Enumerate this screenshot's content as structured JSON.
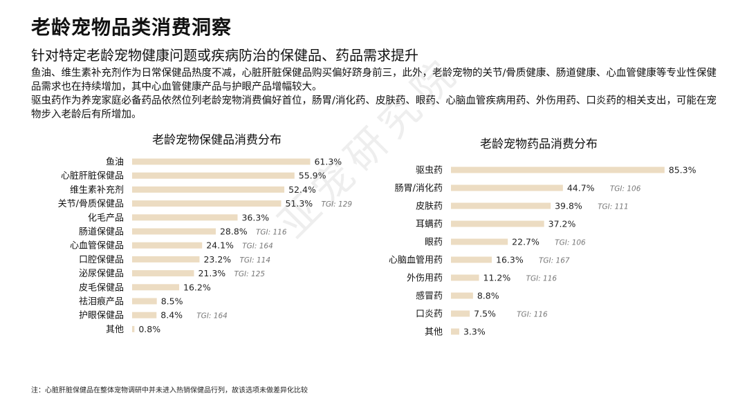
{
  "title": "老龄宠物品类消费洞察",
  "subtitle": "针对特定老龄宠物健康问题或疾病防治的保健品、药品需求提升",
  "paragraph1": "鱼油、维生素补充剂作为日常保健品热度不减，心脏肝脏保健品购买偏好跻身前三，此外，老龄宠物的关节/骨质健康、肠道健康、心血管健康等专业性保健品需求也在持续增加，其中心血管健康产品与护眼产品增幅较大。",
  "paragraph2": "驱虫药作为养宠家庭必备药品依然位列老龄宠物消费偏好首位，肠胃/消化药、皮肤药、眼药、心脑血管疾病用药、外伤用药、口炎药的相关支出，可能在宠物步入老龄后有所增加。",
  "watermark": "亚宠研究院",
  "footnote": "注：心脏肝脏保健品在整体宠物调研中并未进入热销保健品行列，故该选项未做差异化比较",
  "colors": {
    "bar": "#ecdcc2",
    "text": "#111111",
    "tgi": "#777777"
  },
  "chart_data": [
    {
      "type": "bar",
      "orientation": "horizontal",
      "title": "老龄宠物保健品消费分布",
      "categories": [
        "鱼油",
        "心脏肝脏保健品",
        "维生素补充剂",
        "关节/骨质保健品",
        "化毛产品",
        "肠道保健品",
        "心血管保健品",
        "口腔保健品",
        "泌尿保健品",
        "皮毛保健品",
        "祛泪痕产品",
        "护眼保健品",
        "其他"
      ],
      "values": [
        61.3,
        55.9,
        52.4,
        51.3,
        36.3,
        28.8,
        24.1,
        23.2,
        21.3,
        16.2,
        8.5,
        8.4,
        0.8
      ],
      "value_labels": [
        "61.3%",
        "55.9%",
        "52.4%",
        "51.3%",
        "36.3%",
        "28.8%",
        "24.1%",
        "23.2%",
        "21.3%",
        "16.2%",
        "8.5%",
        "8.4%",
        "0.8%"
      ],
      "tgi": [
        null,
        null,
        null,
        "TGI: 129",
        null,
        "TGI: 116",
        "TGI: 164",
        "TGI: 114",
        "TGI: 125",
        null,
        null,
        "TGI: 164",
        null
      ],
      "unit": "%"
    },
    {
      "type": "bar",
      "orientation": "horizontal",
      "title": "老龄宠物药品消费分布",
      "categories": [
        "驱虫药",
        "肠胃/消化药",
        "皮肤药",
        "耳螨药",
        "眼药",
        "心脑血管用药",
        "外伤用药",
        "感冒药",
        "口炎药",
        "其他"
      ],
      "values": [
        85.3,
        44.7,
        39.8,
        37.2,
        22.7,
        16.3,
        11.2,
        8.8,
        7.5,
        3.3
      ],
      "value_labels": [
        "85.3%",
        "44.7%",
        "39.8%",
        "37.2%",
        "22.7%",
        "16.3%",
        "11.2%",
        "8.8%",
        "7.5%",
        "3.3%"
      ],
      "tgi": [
        null,
        "TGI: 106",
        "TGI: 111",
        null,
        "TGI: 106",
        "TGI: 167",
        "TGI: 116",
        null,
        "TGI: 116",
        null
      ],
      "unit": "%"
    }
  ]
}
